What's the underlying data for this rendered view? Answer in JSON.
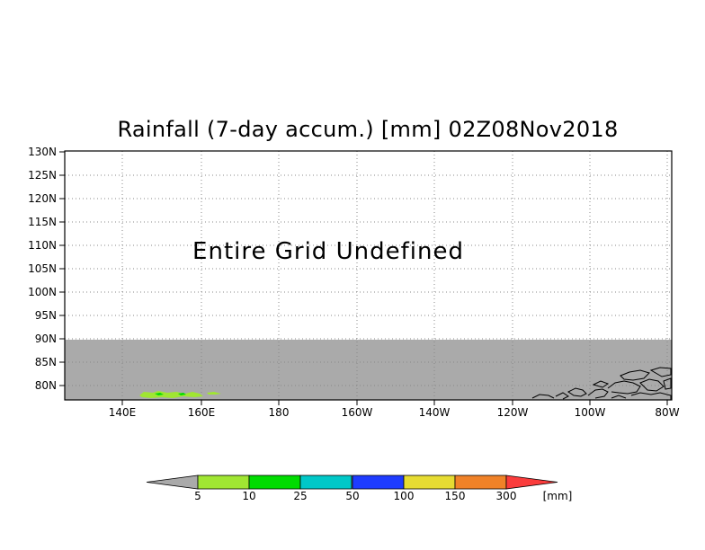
{
  "title": "Rainfall (7-day accum.) [mm] 02Z08Nov2018",
  "map": {
    "message": "Entire Grid Undefined",
    "lat_labels": [
      "130N",
      "125N",
      "120N",
      "115N",
      "110N",
      "105N",
      "100N",
      "95N",
      "90N",
      "85N",
      "80N"
    ],
    "lon_labels": [
      "140E",
      "160E",
      "180",
      "160W",
      "140W",
      "120W",
      "100W",
      "80W"
    ],
    "undefined_color": "#aaaaaa",
    "border_color": "#000000",
    "grid": true
  },
  "colorbar": {
    "unit": "[mm]",
    "ticks": [
      "5",
      "10",
      "25",
      "50",
      "100",
      "150",
      "300"
    ],
    "colors": [
      "#a0e632",
      "#00dc00",
      "#00c8c8",
      "#1e3cff",
      "#e6dc32",
      "#f08228",
      "#fa3c3c"
    ],
    "below_color": "#aaaaaa"
  },
  "chart_data": {
    "type": "heatmap",
    "title": "Rainfall (7-day accum.) [mm] 02Z08Nov2018",
    "ylim": [
      "78N",
      "130N"
    ],
    "xlim": [
      "125E",
      "80W"
    ],
    "levels": [
      5,
      10,
      25,
      50,
      100,
      150,
      300
    ],
    "unit": "mm"
  }
}
